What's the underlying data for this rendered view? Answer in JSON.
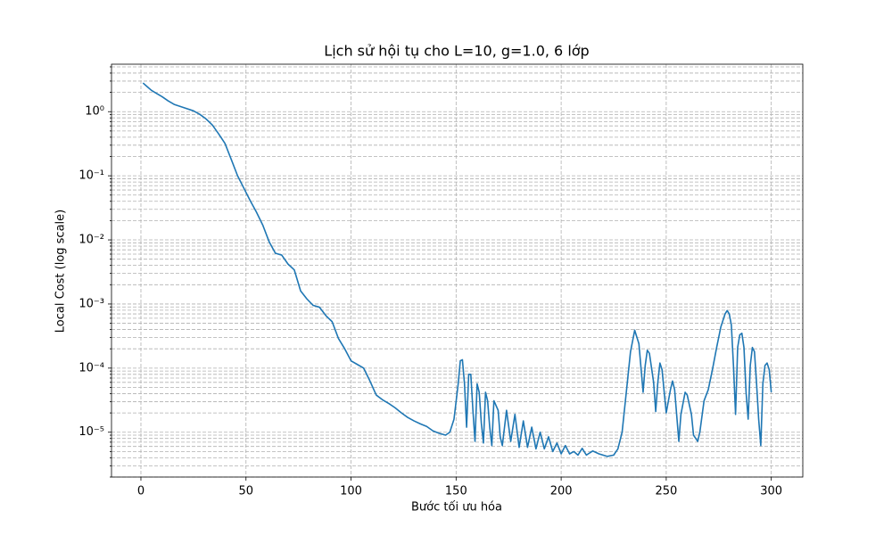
{
  "chart_data": {
    "type": "line",
    "title": "Lịch sử hội tụ cho L=10, g=1.0, 6 lớp",
    "xlabel": "Bước tối ưu hóa",
    "ylabel": "Local Cost (log scale)",
    "color": "#1f77b4",
    "ylog": true,
    "grid": true,
    "xlim": [
      -14,
      315
    ],
    "ylim": [
      2e-06,
      5.5
    ],
    "xticks": [
      0,
      50,
      100,
      150,
      200,
      250,
      300
    ],
    "yticks": [
      {
        "value": 1e-05,
        "label": "10⁻⁵"
      },
      {
        "value": 0.0001,
        "label": "10⁻⁴"
      },
      {
        "value": 0.001,
        "label": "10⁻³"
      },
      {
        "value": 0.01,
        "label": "10⁻²"
      },
      {
        "value": 0.1,
        "label": "10⁻¹"
      },
      {
        "value": 1,
        "label": "10⁰"
      }
    ],
    "yminorticks": [
      2e-06,
      3e-06,
      4e-06,
      5e-06,
      6e-06,
      7e-06,
      8e-06,
      9e-06,
      2e-05,
      3e-05,
      4e-05,
      5e-05,
      6e-05,
      7e-05,
      8e-05,
      9e-05,
      0.0002,
      0.0003,
      0.0004,
      0.0005,
      0.0006,
      0.0007,
      0.0008,
      0.0009,
      0.002,
      0.003,
      0.004,
      0.005,
      0.006,
      0.007,
      0.008,
      0.009,
      0.02,
      0.03,
      0.04,
      0.05,
      0.06,
      0.07,
      0.08,
      0.09,
      0.2,
      0.3,
      0.4,
      0.5,
      0.6,
      0.7,
      0.8,
      0.9,
      2,
      3,
      4,
      5
    ],
    "x": [
      1,
      3,
      5,
      7,
      10,
      13,
      16,
      20,
      25,
      28,
      31,
      34,
      37,
      40,
      43,
      46,
      49,
      52,
      55,
      58,
      61,
      64,
      67,
      70,
      73,
      76,
      79,
      82,
      85,
      88,
      91,
      94,
      97,
      100,
      103,
      106,
      109,
      112,
      115,
      118,
      121,
      124,
      127,
      130,
      133,
      136,
      139,
      142,
      145,
      147,
      149,
      151,
      152,
      153,
      154,
      155,
      156,
      157,
      158,
      159,
      160,
      161,
      162,
      163,
      164,
      165,
      166,
      167,
      168,
      170,
      171,
      172,
      174,
      176,
      178,
      180,
      182,
      184,
      186,
      188,
      190,
      192,
      194,
      196,
      198,
      200,
      202,
      204,
      206,
      208,
      210,
      212,
      215,
      218,
      222,
      225,
      227,
      229,
      231,
      233,
      235,
      237,
      239,
      240,
      241,
      242,
      244,
      245,
      246,
      247,
      248,
      250,
      252,
      253,
      254,
      256,
      257,
      259,
      260,
      262,
      263,
      265,
      266,
      268,
      270,
      272,
      274,
      276,
      278,
      279,
      280,
      281,
      282,
      283,
      284,
      285,
      286,
      287,
      288,
      289,
      290,
      291,
      292,
      293,
      294,
      295,
      296,
      297,
      298,
      299,
      300
    ],
    "values": [
      2.8,
      2.45,
      2.15,
      1.96,
      1.72,
      1.47,
      1.29,
      1.17,
      1.03,
      0.91,
      0.77,
      0.62,
      0.45,
      0.32,
      0.18,
      0.1,
      0.064,
      0.041,
      0.027,
      0.017,
      0.0094,
      0.0062,
      0.0058,
      0.0042,
      0.0034,
      0.0016,
      0.0012,
      0.00095,
      0.00089,
      0.00066,
      0.00053,
      0.00029,
      0.0002,
      0.00013,
      0.000114,
      0.0001,
      6.3e-05,
      3.8e-05,
      3.2e-05,
      2.8e-05,
      2.4e-05,
      2e-05,
      1.7e-05,
      1.5e-05,
      1.35e-05,
      1.23e-05,
      1.05e-05,
      9.6e-06,
      9e-06,
      1e-05,
      1.6e-05,
      5.7e-05,
      0.00013,
      0.000135,
      5.7e-05,
      1.2e-05,
      8e-05,
      8e-05,
      2.2e-05,
      7.2e-06,
      5.7e-05,
      4.2e-05,
      1.4e-05,
      6.8e-06,
      4.2e-05,
      3.1e-05,
      1.2e-05,
      6.2e-06,
      3.1e-05,
      2.2e-05,
      8.5e-06,
      6.2e-06,
      2.2e-05,
      7.2e-06,
      1.9e-05,
      5.8e-06,
      1.5e-05,
      5.8e-06,
      1.2e-05,
      5.5e-06,
      1e-05,
      5.5e-06,
      8.5e-06,
      5e-06,
      6.8e-06,
      4.6e-06,
      6.2e-06,
      4.6e-06,
      5e-06,
      4.4e-06,
      5.6e-06,
      4.4e-06,
      5.1e-06,
      4.6e-06,
      4.2e-06,
      4.4e-06,
      5.5e-06,
      1e-05,
      4.2e-05,
      0.00018,
      0.00039,
      0.00024,
      4.2e-05,
      0.00011,
      0.00019,
      0.00017,
      6e-05,
      2.1e-05,
      6e-05,
      0.00012,
      9.5e-05,
      2e-05,
      4.6e-05,
      6.3e-05,
      4.6e-05,
      7.2e-06,
      1.9e-05,
      4.2e-05,
      3.8e-05,
      1.9e-05,
      9e-06,
      7.2e-06,
      1e-05,
      3.1e-05,
      4.6e-05,
      9.5e-05,
      0.00021,
      0.00044,
      0.0007,
      0.00079,
      0.0007,
      0.00047,
      0.00011,
      1.9e-05,
      0.00021,
      0.00033,
      0.00035,
      0.00021,
      4.2e-05,
      1.6e-05,
      0.00011,
      0.00021,
      0.00018,
      5.7e-05,
      1.6e-05,
      6.2e-06,
      5.7e-05,
      0.00011,
      0.00012,
      9.5e-05,
      4.2e-05
    ]
  }
}
